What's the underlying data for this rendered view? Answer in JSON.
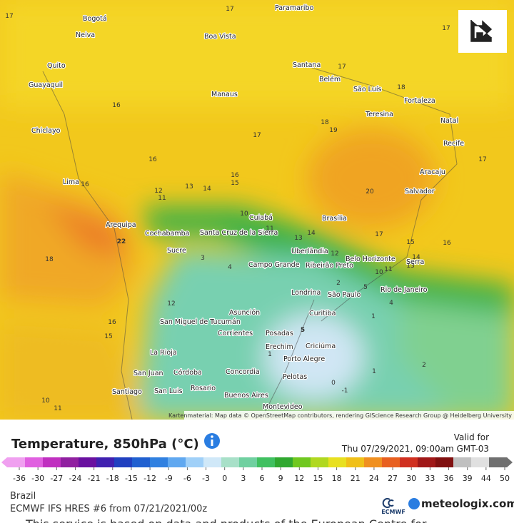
{
  "map": {
    "attribution": "Kartenmaterial: Map data © OpenStreetMap contributors, rendering GIScience Research Group @ Heidelberg University",
    "cities": [
      "Paramaribo",
      "Bogotá",
      "Boa Vista",
      "Neiva",
      "Quito",
      "Guayaquil",
      "Santana",
      "Belém",
      "São Luís",
      "Fortaleza",
      "Manaus",
      "Teresina",
      "Natal",
      "Chiclayo",
      "Recife",
      "Aracaju",
      "Lima",
      "Salvador",
      "Brasília",
      "Cuiabá",
      "Arequipa",
      "Cochabamba",
      "Santa Cruz de la Sierra",
      "Sucre",
      "Uberlândia",
      "Belo Horizonte",
      "Campo Grande",
      "Ribeirão Preto",
      "Serra",
      "Londrina",
      "São Paulo",
      "Rio de Janeiro",
      "Asunción",
      "Curitiba",
      "San Miguel de Tucumán",
      "Corrientes",
      "Posadas",
      "Erechim",
      "Criciúma",
      "La Rioja",
      "Porto Alegre",
      "San Juan",
      "Córdoba",
      "Concordia",
      "Pelotas",
      "Rosario",
      "Santiago",
      "San Luis",
      "Buenos Aires",
      "Montevideo"
    ],
    "values": [
      17,
      17,
      17,
      16,
      17,
      18,
      19,
      18,
      17,
      16,
      16,
      15,
      13,
      14,
      16,
      12,
      11,
      17,
      20,
      22,
      10,
      11,
      13,
      14,
      17,
      15,
      16,
      18,
      3,
      4,
      12,
      14,
      13,
      10,
      11,
      2,
      5,
      4,
      16,
      15,
      12,
      1,
      5,
      1,
      1,
      2,
      0,
      -1,
      10,
      11
    ]
  },
  "footer": {
    "title": "Temperature, 850hPa (°C)",
    "valid_label": "Valid for",
    "valid_time": "Thu 07/29/2021, 09:00am GMT-03",
    "region": "Brazil",
    "model": "ECMWF IFS HRES #6 from 07/21/2021/00z",
    "ecmwf": "ECMWF",
    "brand": "meteologix.com",
    "note": "This service is based on data and products of the European Centre for"
  },
  "legend": {
    "ticks": [
      -36,
      -30,
      -27,
      -24,
      -21,
      -18,
      -15,
      -12,
      -9,
      -6,
      -3,
      0,
      3,
      6,
      9,
      12,
      15,
      18,
      21,
      24,
      27,
      30,
      33,
      36,
      39,
      44,
      50
    ],
    "colors": [
      "#f0a0f0",
      "#e060e0",
      "#c030c0",
      "#9020a0",
      "#6a10a0",
      "#4020b0",
      "#2040c0",
      "#2060d0",
      "#3080e0",
      "#60a8f0",
      "#a0d0f8",
      "#d0e8f8",
      "#a8e0c8",
      "#70d0a0",
      "#40c060",
      "#30a830",
      "#70c820",
      "#b0d820",
      "#e8e020",
      "#f0c018",
      "#f09020",
      "#e86020",
      "#d03020",
      "#a01818",
      "#801010",
      "#c0c0c0",
      "#e0e0e0",
      "#707070"
    ]
  }
}
